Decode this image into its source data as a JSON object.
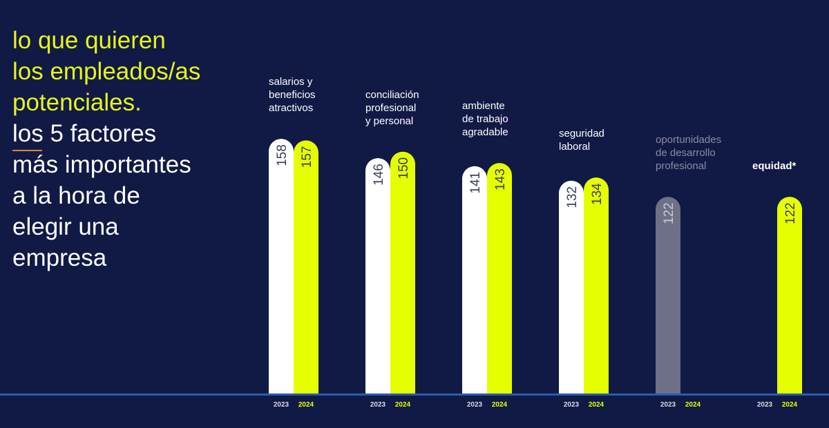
{
  "headline": {
    "lines_highlight": [
      "lo que quieren",
      "los empleados/as",
      "potenciales."
    ],
    "line_underlined_word": "los",
    "line_rest": " 5 factores",
    "lines_plain": [
      "más importantes",
      "a la hora de",
      "elegir una",
      "empresa"
    ]
  },
  "colors": {
    "background": "#111a45",
    "year_2023": "#ffffff",
    "year_2024": "#e6ff00",
    "muted": "#6e7088",
    "axis": "#2a5db0",
    "value_text": "#3a3f5c"
  },
  "chart_data": {
    "type": "bar",
    "categories": [
      [
        "salarios y",
        "beneficios",
        "atractivos"
      ],
      [
        "conciliación",
        "profesional",
        "y personal"
      ],
      [
        "ambiente",
        "de trabajo",
        "agradable"
      ],
      [
        "seguridad",
        "laboral"
      ],
      [
        "oportunidades",
        "de desarrollo",
        "profesional"
      ],
      [
        "equidad*"
      ]
    ],
    "x_tick_labels": [
      "2023",
      "2024"
    ],
    "series": [
      {
        "name": "2023",
        "values": [
          158,
          146,
          141,
          132,
          122,
          null
        ]
      },
      {
        "name": "2024",
        "values": [
          157,
          150,
          143,
          134,
          null,
          122
        ]
      }
    ],
    "muted_categories": [
      4
    ],
    "ylim": [
      0,
      160
    ],
    "grid": false,
    "legend": "none"
  }
}
